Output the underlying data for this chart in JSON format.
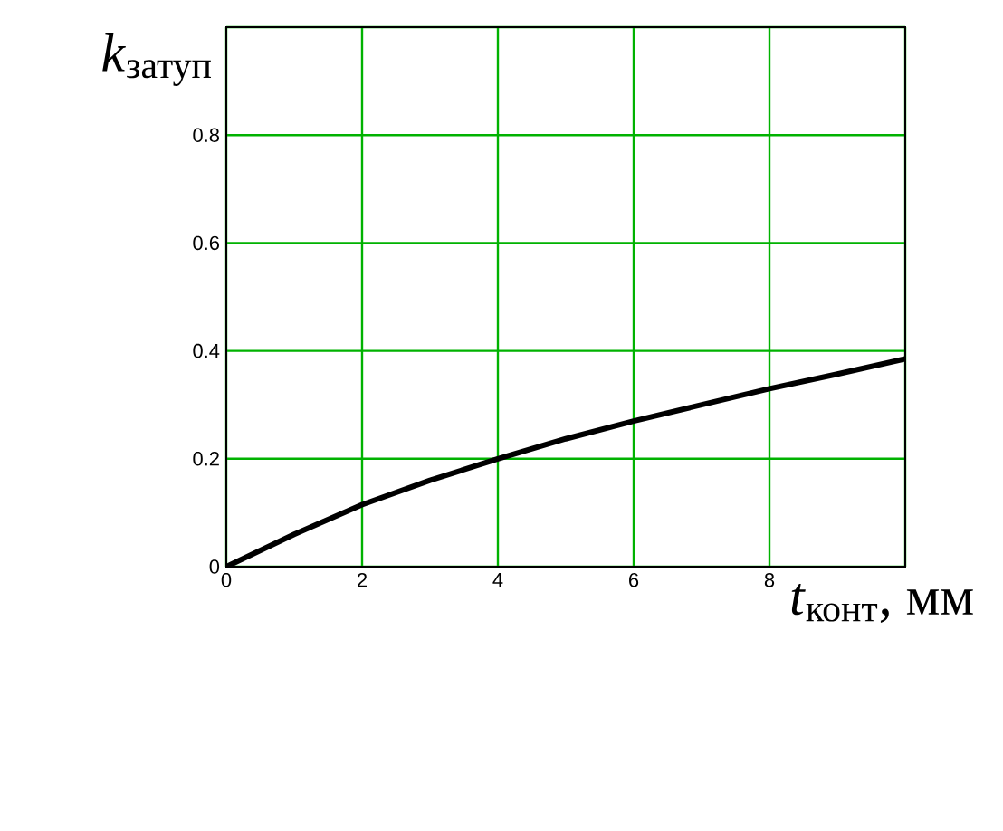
{
  "chart_data": {
    "type": "line",
    "xlabel": "*t*$_{конт}$, мм",
    "ylabel": "*k*$_{затуп}$",
    "x": [
      0,
      1,
      2,
      3,
      4,
      5,
      6,
      7,
      8,
      9,
      10
    ],
    "series": [
      {
        "color": "#000000",
        "values": [
          0,
          0.06,
          0.115,
          0.16,
          0.2,
          0.237,
          0.27,
          0.3,
          0.33,
          0.357,
          0.385
        ]
      }
    ],
    "xlim": [
      0,
      10
    ],
    "ylim": [
      0,
      1
    ],
    "xticks": [
      0,
      2,
      4,
      6,
      8,
      {
        "value": 10,
        "label": null
      }
    ],
    "yticks": [
      0,
      0.2,
      0.4,
      0.6,
      0.8,
      {
        "value": 1,
        "label": null
      }
    ],
    "grid": true,
    "marker": "none",
    "line_style": "solid"
  }
}
